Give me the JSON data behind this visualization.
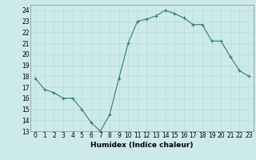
{
  "x": [
    0,
    1,
    2,
    3,
    4,
    5,
    6,
    7,
    8,
    9,
    10,
    11,
    12,
    13,
    14,
    15,
    16,
    17,
    18,
    19,
    20,
    21,
    22,
    23
  ],
  "y": [
    17.8,
    16.8,
    16.5,
    16.0,
    16.0,
    15.0,
    13.8,
    13.0,
    14.5,
    17.8,
    21.0,
    23.0,
    23.2,
    23.5,
    24.0,
    23.7,
    23.3,
    22.7,
    22.7,
    21.2,
    21.2,
    19.8,
    18.5,
    18.0
  ],
  "line_color": "#2e7d6e",
  "marker": "+",
  "marker_size": 3,
  "background_color": "#cdeaea",
  "grid_color": "#b0d8d8",
  "xlabel": "Humidex (Indice chaleur)",
  "xlim": [
    -0.5,
    23.5
  ],
  "ylim": [
    13,
    24.5
  ],
  "yticks": [
    13,
    14,
    15,
    16,
    17,
    18,
    19,
    20,
    21,
    22,
    23,
    24
  ],
  "xticks": [
    0,
    1,
    2,
    3,
    4,
    5,
    6,
    7,
    8,
    9,
    10,
    11,
    12,
    13,
    14,
    15,
    16,
    17,
    18,
    19,
    20,
    21,
    22,
    23
  ],
  "label_fontsize": 6.5,
  "tick_fontsize": 5.5
}
